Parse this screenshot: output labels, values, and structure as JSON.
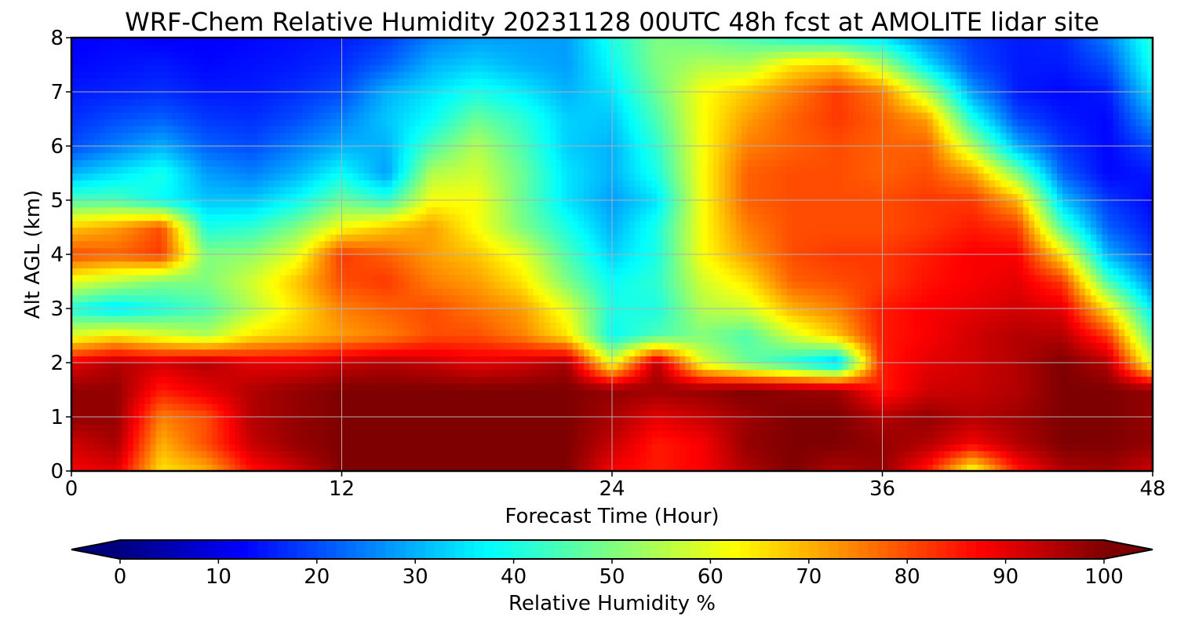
{
  "chart_data": {
    "type": "heatmap",
    "title": "WRF-Chem Relative Humidity 20231128 00UTC 48h fcst at AMOLITE lidar site",
    "xlabel": "Forecast Time (Hour)",
    "ylabel": "Alt AGL (km)",
    "xlim": [
      0,
      48
    ],
    "ylim": [
      0,
      8
    ],
    "x_ticks": [
      0,
      12,
      24,
      36,
      48
    ],
    "y_ticks": [
      0,
      1,
      2,
      3,
      4,
      5,
      6,
      7,
      8
    ],
    "grid": true,
    "colorbar": {
      "label": "Relative Humidity %",
      "ticks": [
        0,
        10,
        20,
        30,
        40,
        50,
        60,
        70,
        80,
        90,
        100
      ],
      "range": [
        0,
        100
      ],
      "extend": "both",
      "colormap": "jet",
      "colors": [
        "#00007f",
        "#0000ff",
        "#007fff",
        "#00ffff",
        "#7fff7f",
        "#ffff00",
        "#ff7f00",
        "#ff0000",
        "#7f0000"
      ]
    },
    "x_hours": [
      0,
      2,
      4,
      6,
      8,
      10,
      12,
      14,
      16,
      18,
      20,
      22,
      24,
      26,
      28,
      30,
      32,
      34,
      36,
      38,
      40,
      42,
      44,
      46,
      48
    ],
    "y_km": [
      0,
      0.5,
      1,
      1.5,
      2,
      2.5,
      3,
      3.5,
      4,
      4.5,
      5,
      5.5,
      6,
      6.5,
      7,
      7.5,
      8
    ],
    "values_rh": [
      [
        88,
        90,
        65,
        70,
        86,
        92,
        100,
        100,
        100,
        100,
        100,
        100,
        88,
        85,
        88,
        95,
        100,
        95,
        98,
        85,
        60,
        85,
        95,
        97,
        92
      ],
      [
        92,
        96,
        70,
        80,
        93,
        98,
        100,
        100,
        100,
        100,
        100,
        100,
        93,
        85,
        88,
        98,
        100,
        100,
        98,
        95,
        88,
        95,
        100,
        100,
        98
      ],
      [
        98,
        98,
        75,
        80,
        95,
        98,
        100,
        100,
        100,
        100,
        100,
        100,
        96,
        90,
        93,
        97,
        100,
        100,
        95,
        98,
        95,
        97,
        100,
        100,
        98
      ],
      [
        98,
        98,
        85,
        90,
        95,
        98,
        100,
        100,
        100,
        100,
        100,
        100,
        98,
        97,
        98,
        100,
        98,
        97,
        85,
        92,
        93,
        95,
        100,
        100,
        98
      ],
      [
        90,
        95,
        92,
        95,
        90,
        90,
        93,
        95,
        93,
        90,
        92,
        96,
        60,
        95,
        60,
        48,
        40,
        30,
        85,
        90,
        92,
        95,
        100,
        95,
        58
      ],
      [
        60,
        65,
        60,
        55,
        65,
        68,
        72,
        75,
        80,
        80,
        75,
        65,
        38,
        45,
        50,
        45,
        58,
        68,
        85,
        88,
        92,
        95,
        95,
        82,
        45
      ],
      [
        40,
        35,
        40,
        45,
        55,
        65,
        75,
        78,
        80,
        76,
        72,
        60,
        40,
        40,
        55,
        58,
        70,
        75,
        85,
        88,
        90,
        92,
        90,
        65,
        35
      ],
      [
        60,
        55,
        50,
        50,
        58,
        68,
        80,
        82,
        75,
        72,
        65,
        50,
        38,
        42,
        58,
        65,
        78,
        80,
        82,
        86,
        88,
        90,
        82,
        45,
        25
      ],
      [
        80,
        78,
        82,
        50,
        52,
        60,
        82,
        78,
        72,
        68,
        60,
        45,
        33,
        40,
        62,
        72,
        80,
        82,
        82,
        85,
        88,
        88,
        65,
        30,
        18
      ],
      [
        68,
        72,
        80,
        40,
        42,
        50,
        62,
        68,
        72,
        62,
        50,
        40,
        30,
        40,
        62,
        75,
        80,
        80,
        80,
        82,
        85,
        82,
        45,
        22,
        15
      ],
      [
        45,
        45,
        38,
        32,
        32,
        38,
        48,
        42,
        62,
        62,
        48,
        35,
        28,
        35,
        62,
        78,
        80,
        80,
        80,
        82,
        82,
        70,
        32,
        18,
        13
      ],
      [
        30,
        35,
        40,
        28,
        25,
        30,
        38,
        28,
        55,
        58,
        48,
        35,
        30,
        40,
        62,
        78,
        80,
        80,
        78,
        80,
        72,
        50,
        22,
        13,
        15
      ],
      [
        20,
        25,
        30,
        22,
        20,
        25,
        30,
        30,
        45,
        55,
        45,
        33,
        30,
        42,
        62,
        75,
        78,
        80,
        78,
        78,
        55,
        30,
        18,
        13,
        20
      ],
      [
        17,
        20,
        22,
        18,
        17,
        20,
        25,
        32,
        38,
        48,
        42,
        33,
        32,
        45,
        62,
        72,
        78,
        82,
        78,
        72,
        40,
        20,
        15,
        13,
        28
      ],
      [
        15,
        16,
        17,
        15,
        15,
        17,
        20,
        30,
        35,
        40,
        36,
        30,
        35,
        48,
        62,
        68,
        75,
        82,
        75,
        55,
        28,
        15,
        13,
        15,
        35
      ],
      [
        13,
        14,
        15,
        13,
        14,
        15,
        17,
        22,
        30,
        33,
        30,
        28,
        38,
        50,
        55,
        55,
        65,
        68,
        55,
        35,
        20,
        15,
        15,
        20,
        40
      ],
      [
        12,
        13,
        12,
        12,
        13,
        14,
        15,
        18,
        25,
        28,
        28,
        28,
        40,
        50,
        48,
        45,
        40,
        38,
        35,
        25,
        18,
        15,
        16,
        25,
        42
      ]
    ]
  }
}
